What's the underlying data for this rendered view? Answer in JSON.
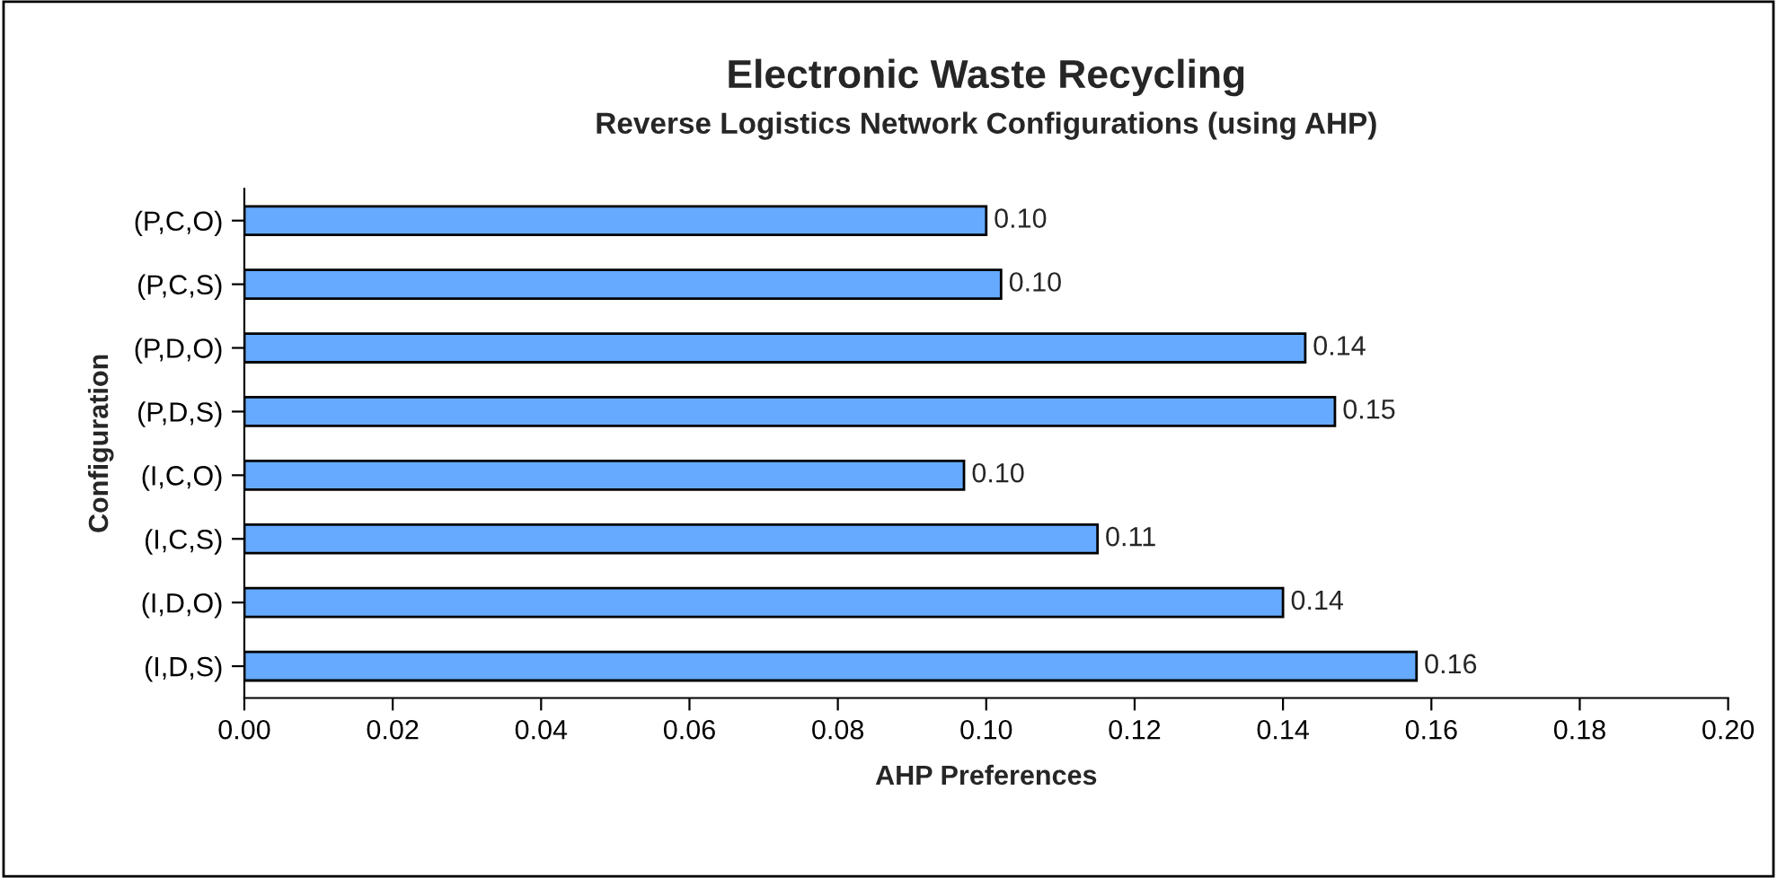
{
  "chart_data": {
    "type": "bar",
    "orientation": "horizontal",
    "title": "Electronic Waste Recycling",
    "subtitle": "Reverse Logistics Network Configurations (using AHP)",
    "xlabel": "AHP Preferences",
    "ylabel": "Configuration",
    "categories": [
      "(P,C,O)",
      "(P,C,S)",
      "(P,D,O)",
      "(P,D,S)",
      "(I,C,O)",
      "(I,C,S)",
      "(I,D,O)",
      "(I,D,S)"
    ],
    "values": [
      0.1,
      0.102,
      0.143,
      0.147,
      0.097,
      0.115,
      0.14,
      0.158
    ],
    "value_labels": [
      "0.10",
      "0.10",
      "0.14",
      "0.15",
      "0.10",
      "0.11",
      "0.14",
      "0.16"
    ],
    "color": "#66aaff",
    "xlim": [
      0,
      0.2
    ],
    "xticks": [
      {
        "value": 0,
        "label": "0.00"
      },
      {
        "value": 0.02,
        "label": "0.02"
      },
      {
        "value": 0.04,
        "label": "0.04"
      },
      {
        "value": 0.06,
        "label": "0.06"
      },
      {
        "value": 0.08,
        "label": "0.08"
      },
      {
        "value": 0.1,
        "label": "0.10"
      },
      {
        "value": 0.12,
        "label": "0.12"
      },
      {
        "value": 0.14,
        "label": "0.14"
      },
      {
        "value": 0.16,
        "label": "0.16"
      },
      {
        "value": 0.18,
        "label": "0.18"
      },
      {
        "value": 0.2,
        "label": "0.20"
      }
    ],
    "grid": false,
    "legend": false
  }
}
